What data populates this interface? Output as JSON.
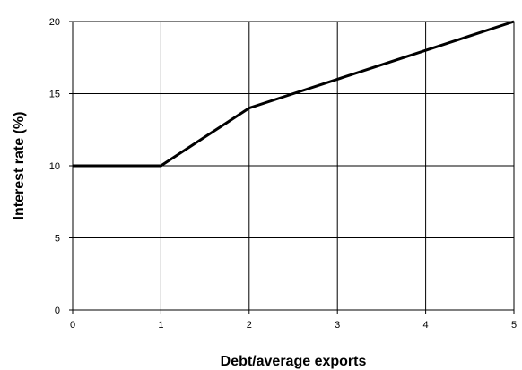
{
  "chart_data": {
    "type": "line",
    "title": "",
    "xlabel": "Debt/average exports",
    "ylabel": "Interest rate (%)",
    "xlim": [
      0,
      5
    ],
    "ylim": [
      0,
      20
    ],
    "x_ticks": [
      "0",
      "1",
      "2",
      "3",
      "4",
      "5"
    ],
    "y_ticks": [
      "0",
      "5",
      "10",
      "15",
      "20"
    ],
    "grid": true,
    "legend": "none",
    "series": [
      {
        "x": [
          0,
          0.5,
          1,
          1.5,
          2,
          2.5,
          3,
          3.5,
          4,
          4.5,
          5
        ],
        "y": [
          10,
          10,
          10,
          12,
          14,
          15,
          16,
          17,
          18,
          19,
          20
        ]
      }
    ],
    "line_color": "#000000"
  }
}
